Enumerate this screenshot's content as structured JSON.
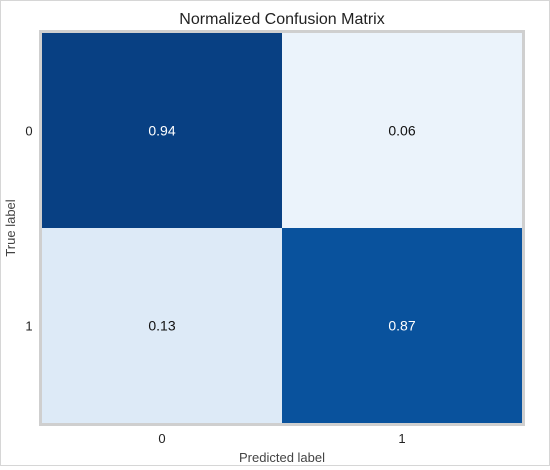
{
  "chart_data": {
    "type": "heatmap",
    "title": "Normalized Confusion Matrix",
    "xlabel": "Predicted label",
    "ylabel": "True label",
    "x_categories": [
      "0",
      "1"
    ],
    "y_categories": [
      "0",
      "1"
    ],
    "values": [
      [
        0.94,
        0.06
      ],
      [
        0.13,
        0.87
      ]
    ],
    "value_labels": [
      [
        "0.94",
        "0.06"
      ],
      [
        "0.13",
        "0.87"
      ]
    ],
    "color_range": [
      0,
      1
    ],
    "colormap": "Blues",
    "grid": false
  }
}
